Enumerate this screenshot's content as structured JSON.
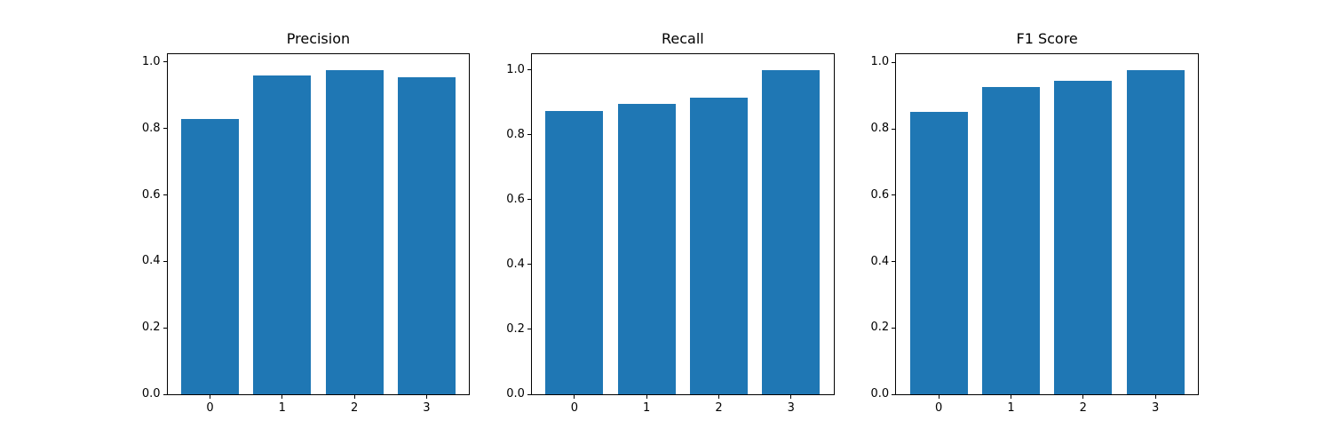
{
  "figure": {
    "background": "#ffffff",
    "bar_color": "#1f77b4",
    "spine_color": "#000000",
    "text_color": "#000000"
  },
  "chart_data": [
    {
      "type": "bar",
      "name": "precision",
      "title": "Precision",
      "categories": [
        "0",
        "1",
        "2",
        "3"
      ],
      "values": [
        0.83,
        0.96,
        0.975,
        0.955
      ],
      "yticks": [
        0.0,
        0.2,
        0.4,
        0.6,
        0.8,
        1.0
      ],
      "ytick_labels": [
        "0.0",
        "0.2",
        "0.4",
        "0.6",
        "0.8",
        "1.0"
      ],
      "ylim": [
        0,
        1.024
      ],
      "xlim": [
        -0.59,
        3.59
      ],
      "bar_width": 0.8,
      "xlabel": "",
      "ylabel": "",
      "grid": false,
      "legend": null
    },
    {
      "type": "bar",
      "name": "recall",
      "title": "Recall",
      "categories": [
        "0",
        "1",
        "2",
        "3"
      ],
      "values": [
        0.875,
        0.896,
        0.916,
        0.999
      ],
      "yticks": [
        0.0,
        0.2,
        0.4,
        0.6,
        0.8,
        1.0
      ],
      "ytick_labels": [
        "0.0",
        "0.2",
        "0.4",
        "0.6",
        "0.8",
        "1.0"
      ],
      "ylim": [
        0,
        1.049
      ],
      "xlim": [
        -0.59,
        3.59
      ],
      "bar_width": 0.8,
      "xlabel": "",
      "ylabel": "",
      "grid": false,
      "legend": null
    },
    {
      "type": "bar",
      "name": "f1-score",
      "title": "F1 Score",
      "categories": [
        "0",
        "1",
        "2",
        "3"
      ],
      "values": [
        0.85,
        0.925,
        0.945,
        0.976
      ],
      "yticks": [
        0.0,
        0.2,
        0.4,
        0.6,
        0.8,
        1.0
      ],
      "ytick_labels": [
        "0.0",
        "0.2",
        "0.4",
        "0.6",
        "0.8",
        "1.0"
      ],
      "ylim": [
        0,
        1.025
      ],
      "xlim": [
        -0.59,
        3.59
      ],
      "bar_width": 0.8,
      "xlabel": "",
      "ylabel": "",
      "grid": false,
      "legend": null
    }
  ]
}
